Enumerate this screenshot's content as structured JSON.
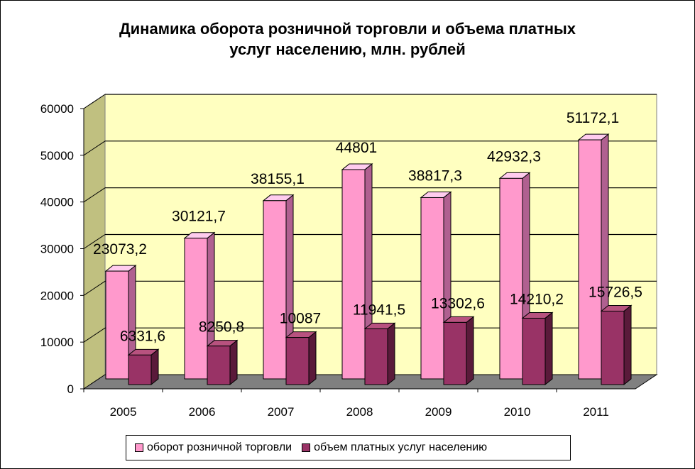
{
  "chart_data": {
    "type": "bar",
    "title_lines": [
      "Динамика оборота розничной торговли и объема платных",
      "услуг населению, млн. рублей"
    ],
    "categories": [
      "2005",
      "2006",
      "2007",
      "2008",
      "2009",
      "2010",
      "2011"
    ],
    "series": [
      {
        "name": "оборот розничной торговли",
        "values": [
          23073.2,
          30121.7,
          38155.1,
          44801,
          38817.3,
          42932.3,
          51172.1
        ],
        "labels": [
          "23073,2",
          "30121,7",
          "38155,1",
          "44801",
          "38817,3",
          "42932,3",
          "51172,1"
        ],
        "color": "#ff99cc"
      },
      {
        "name": "объем платных услуг населению",
        "values": [
          6331.6,
          8250.8,
          10087,
          11941.5,
          13302.6,
          14210.2,
          15726.5
        ],
        "labels": [
          "6331,6",
          "8250,8",
          "10087",
          "11941,5",
          "13302,6",
          "14210,2",
          "15726,5"
        ],
        "color": "#993366"
      }
    ],
    "ylim": [
      0,
      60000
    ],
    "yticks": [
      "0",
      "10000",
      "20000",
      "30000",
      "40000",
      "50000",
      "60000"
    ],
    "grid": true,
    "legend_position": "bottom",
    "wall_color": "#ffffc0",
    "side_wall_color": "#c0c080",
    "floor_color": "#808080"
  }
}
